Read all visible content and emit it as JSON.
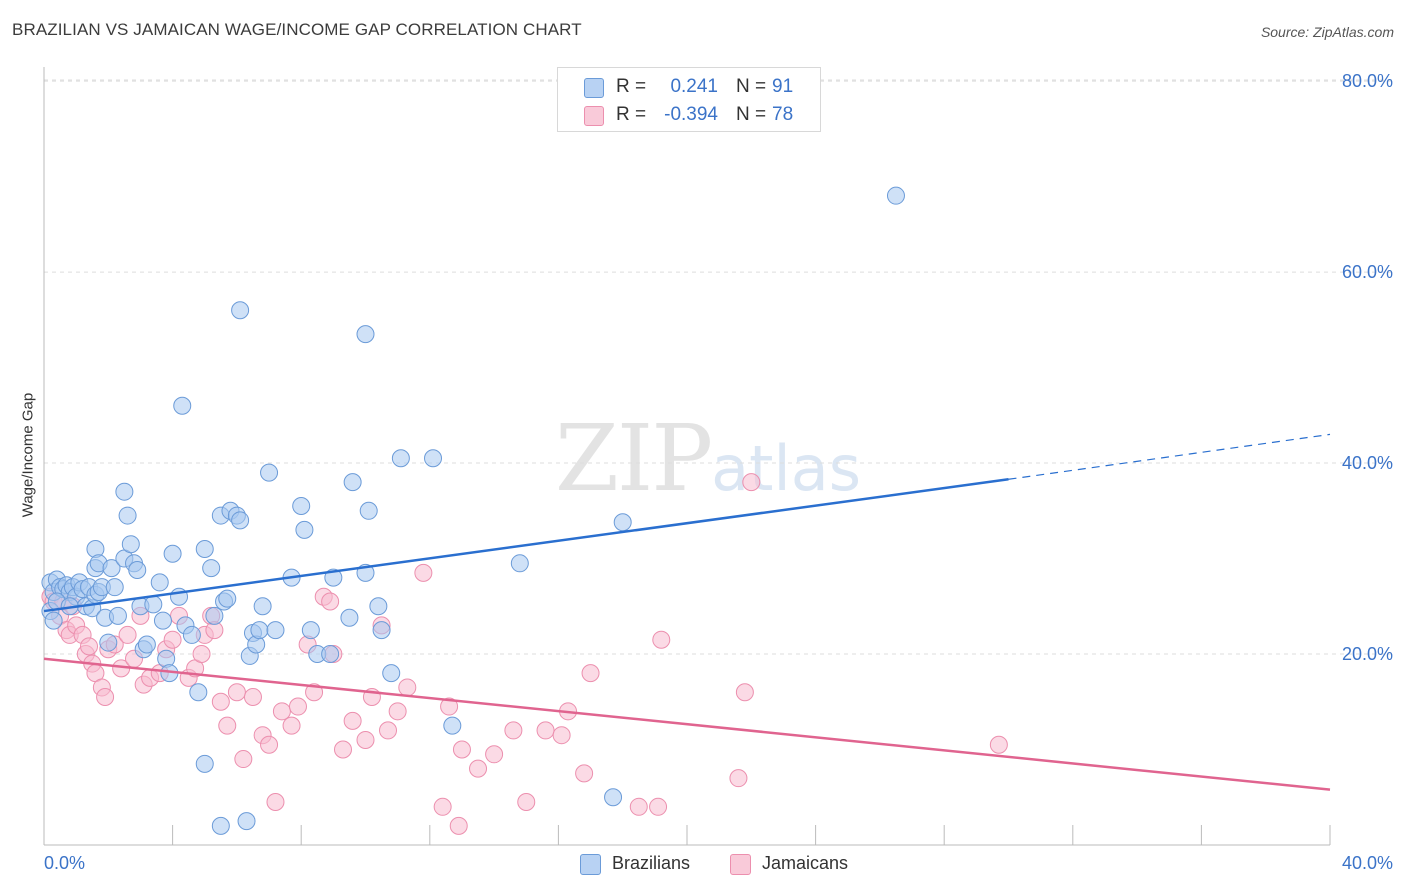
{
  "header": {
    "title": "BRAZILIAN VS JAMAICAN WAGE/INCOME GAP CORRELATION CHART",
    "source": "Source: ZipAtlas.com"
  },
  "watermark": {
    "zip": "ZIP",
    "atlas": "atlas"
  },
  "legend": {
    "rows": [
      {
        "r_label": "R =",
        "r_value": "0.241",
        "n_label": "N =",
        "n_value": "91"
      },
      {
        "r_label": "R =",
        "r_value": "-0.394",
        "n_label": "N =",
        "n_value": "78"
      }
    ],
    "bottom": [
      "Brazilians",
      "Jamaicans"
    ]
  },
  "colors": {
    "blue_fill": "#a8c8f0",
    "blue_stroke": "#6b9bd8",
    "blue_line": "#2a6fcf",
    "pink_fill": "#f7bcd0",
    "pink_stroke": "#ec8fae",
    "pink_line": "#e0648f",
    "tick_label": "#3b73c8",
    "grid": "#dddddd"
  },
  "chart_data": {
    "type": "scatter",
    "title": "BRAZILIAN VS JAMAICAN WAGE/INCOME GAP CORRELATION CHART",
    "xlabel": "",
    "ylabel": "Wage/Income Gap",
    "xlim": [
      0,
      40
    ],
    "ylim": [
      0,
      82
    ],
    "x_tick_labels": [
      "0.0%",
      "40.0%"
    ],
    "y_ticks": [
      20,
      40,
      60,
      80
    ],
    "y_tick_labels": [
      "20.0%",
      "40.0%",
      "60.0%",
      "80.0%"
    ],
    "grid": "horizontal dashed",
    "legend_position": "top-center",
    "series": [
      {
        "name": "Brazilians",
        "color": "#a8c8f0",
        "trend": {
          "x0": 0,
          "y0": 24.5,
          "x1": 30,
          "y1": 38.3,
          "dashed_to_x": 40,
          "dashed_to_y": 43.0
        },
        "points": [
          [
            0.2,
            27.5
          ],
          [
            0.3,
            26.5
          ],
          [
            0.4,
            27.8
          ],
          [
            0.5,
            27.0
          ],
          [
            0.6,
            26.8
          ],
          [
            0.7,
            27.2
          ],
          [
            0.8,
            26.5
          ],
          [
            0.9,
            27.0
          ],
          [
            1.0,
            26.0
          ],
          [
            1.1,
            27.5
          ],
          [
            1.2,
            26.8
          ],
          [
            1.3,
            25.0
          ],
          [
            1.4,
            27.0
          ],
          [
            1.5,
            24.8
          ],
          [
            1.6,
            26.2
          ],
          [
            1.7,
            26.5
          ],
          [
            1.8,
            27.0
          ],
          [
            0.2,
            24.5
          ],
          [
            0.3,
            23.5
          ],
          [
            0.4,
            25.5
          ],
          [
            1.6,
            29.0
          ],
          [
            1.6,
            31.0
          ],
          [
            1.7,
            29.5
          ],
          [
            1.9,
            23.8
          ],
          [
            2.0,
            21.2
          ],
          [
            2.1,
            29.0
          ],
          [
            2.2,
            27.0
          ],
          [
            2.3,
            24.0
          ],
          [
            2.5,
            30.0
          ],
          [
            2.6,
            34.5
          ],
          [
            2.7,
            31.5
          ],
          [
            2.8,
            29.5
          ],
          [
            2.9,
            28.8
          ],
          [
            3.0,
            25.0
          ],
          [
            3.1,
            20.5
          ],
          [
            3.2,
            21.0
          ],
          [
            3.4,
            25.2
          ],
          [
            3.6,
            27.5
          ],
          [
            3.7,
            23.5
          ],
          [
            3.8,
            19.5
          ],
          [
            3.9,
            18.0
          ],
          [
            4.0,
            30.5
          ],
          [
            4.2,
            26.0
          ],
          [
            4.4,
            23.0
          ],
          [
            4.6,
            22.0
          ],
          [
            4.8,
            16.0
          ],
          [
            5.0,
            31.0
          ],
          [
            5.2,
            29.0
          ],
          [
            5.3,
            24.0
          ],
          [
            5.5,
            34.5
          ],
          [
            5.6,
            25.5
          ],
          [
            5.7,
            25.8
          ],
          [
            5.8,
            35.0
          ],
          [
            6.0,
            34.5
          ],
          [
            6.1,
            34.0
          ],
          [
            6.4,
            19.8
          ],
          [
            6.5,
            22.2
          ],
          [
            6.6,
            21.0
          ],
          [
            6.7,
            22.5
          ],
          [
            6.8,
            25.0
          ],
          [
            7.0,
            39.0
          ],
          [
            7.2,
            22.5
          ],
          [
            7.7,
            28.0
          ],
          [
            8.0,
            35.5
          ],
          [
            8.1,
            33.0
          ],
          [
            8.3,
            22.5
          ],
          [
            8.5,
            20.0
          ],
          [
            8.9,
            20.0
          ],
          [
            9.0,
            28.0
          ],
          [
            9.5,
            23.8
          ],
          [
            9.6,
            38.0
          ],
          [
            10.0,
            28.5
          ],
          [
            10.1,
            35.0
          ],
          [
            10.4,
            25.0
          ],
          [
            10.5,
            22.5
          ],
          [
            10.8,
            18.0
          ],
          [
            11.1,
            40.5
          ],
          [
            12.1,
            40.5
          ],
          [
            12.7,
            12.5
          ],
          [
            14.8,
            29.5
          ],
          [
            18.0,
            33.8
          ],
          [
            26.5,
            68.0
          ],
          [
            6.1,
            56.0
          ],
          [
            10.0,
            53.5
          ],
          [
            4.3,
            46.0
          ],
          [
            2.5,
            37.0
          ],
          [
            5.0,
            8.5
          ],
          [
            5.5,
            2.0
          ],
          [
            6.3,
            2.5
          ],
          [
            17.7,
            5.0
          ],
          [
            0.8,
            25.0
          ]
        ]
      },
      {
        "name": "Jamaicans",
        "color": "#f7bcd0",
        "trend": {
          "x0": 0,
          "y0": 19.5,
          "x1": 40,
          "y1": 5.8
        },
        "points": [
          [
            0.2,
            26.0
          ],
          [
            0.3,
            25.5
          ],
          [
            0.5,
            24.0
          ],
          [
            0.6,
            25.5
          ],
          [
            0.7,
            22.5
          ],
          [
            0.8,
            22.0
          ],
          [
            0.9,
            25.0
          ],
          [
            1.0,
            23.0
          ],
          [
            1.2,
            22.0
          ],
          [
            1.3,
            20.0
          ],
          [
            1.4,
            20.8
          ],
          [
            1.5,
            19.0
          ],
          [
            1.6,
            18.0
          ],
          [
            1.8,
            16.5
          ],
          [
            1.9,
            15.5
          ],
          [
            2.0,
            20.5
          ],
          [
            2.2,
            21.0
          ],
          [
            2.4,
            18.5
          ],
          [
            2.6,
            22.0
          ],
          [
            2.8,
            19.5
          ],
          [
            3.0,
            24.0
          ],
          [
            3.1,
            16.8
          ],
          [
            3.3,
            17.5
          ],
          [
            3.6,
            18.0
          ],
          [
            3.8,
            20.5
          ],
          [
            4.0,
            21.5
          ],
          [
            4.2,
            24.0
          ],
          [
            4.5,
            17.5
          ],
          [
            4.7,
            18.5
          ],
          [
            4.9,
            20.0
          ],
          [
            5.0,
            22.0
          ],
          [
            5.2,
            24.0
          ],
          [
            5.3,
            22.5
          ],
          [
            5.5,
            15.0
          ],
          [
            5.7,
            12.5
          ],
          [
            6.0,
            16.0
          ],
          [
            6.2,
            9.0
          ],
          [
            6.5,
            15.5
          ],
          [
            6.8,
            11.5
          ],
          [
            7.0,
            10.5
          ],
          [
            7.2,
            4.5
          ],
          [
            7.4,
            14.0
          ],
          [
            7.7,
            12.5
          ],
          [
            7.9,
            14.5
          ],
          [
            8.2,
            21.0
          ],
          [
            8.4,
            16.0
          ],
          [
            8.7,
            26.0
          ],
          [
            8.9,
            25.5
          ],
          [
            9.0,
            20.0
          ],
          [
            9.3,
            10.0
          ],
          [
            9.6,
            13.0
          ],
          [
            10.0,
            11.0
          ],
          [
            10.2,
            15.5
          ],
          [
            10.5,
            23.0
          ],
          [
            10.7,
            12.0
          ],
          [
            11.0,
            14.0
          ],
          [
            11.3,
            16.5
          ],
          [
            11.8,
            28.5
          ],
          [
            12.4,
            4.0
          ],
          [
            12.6,
            14.5
          ],
          [
            12.9,
            2.0
          ],
          [
            13.0,
            10.0
          ],
          [
            13.5,
            8.0
          ],
          [
            14.0,
            9.5
          ],
          [
            14.6,
            12.0
          ],
          [
            15.0,
            4.5
          ],
          [
            15.6,
            12.0
          ],
          [
            16.1,
            11.5
          ],
          [
            16.3,
            14.0
          ],
          [
            16.8,
            7.5
          ],
          [
            17.0,
            18.0
          ],
          [
            18.5,
            4.0
          ],
          [
            19.1,
            4.0
          ],
          [
            19.2,
            21.5
          ],
          [
            21.6,
            7.0
          ],
          [
            21.8,
            16.0
          ],
          [
            22.0,
            38.0
          ],
          [
            29.7,
            10.5
          ]
        ]
      }
    ]
  }
}
